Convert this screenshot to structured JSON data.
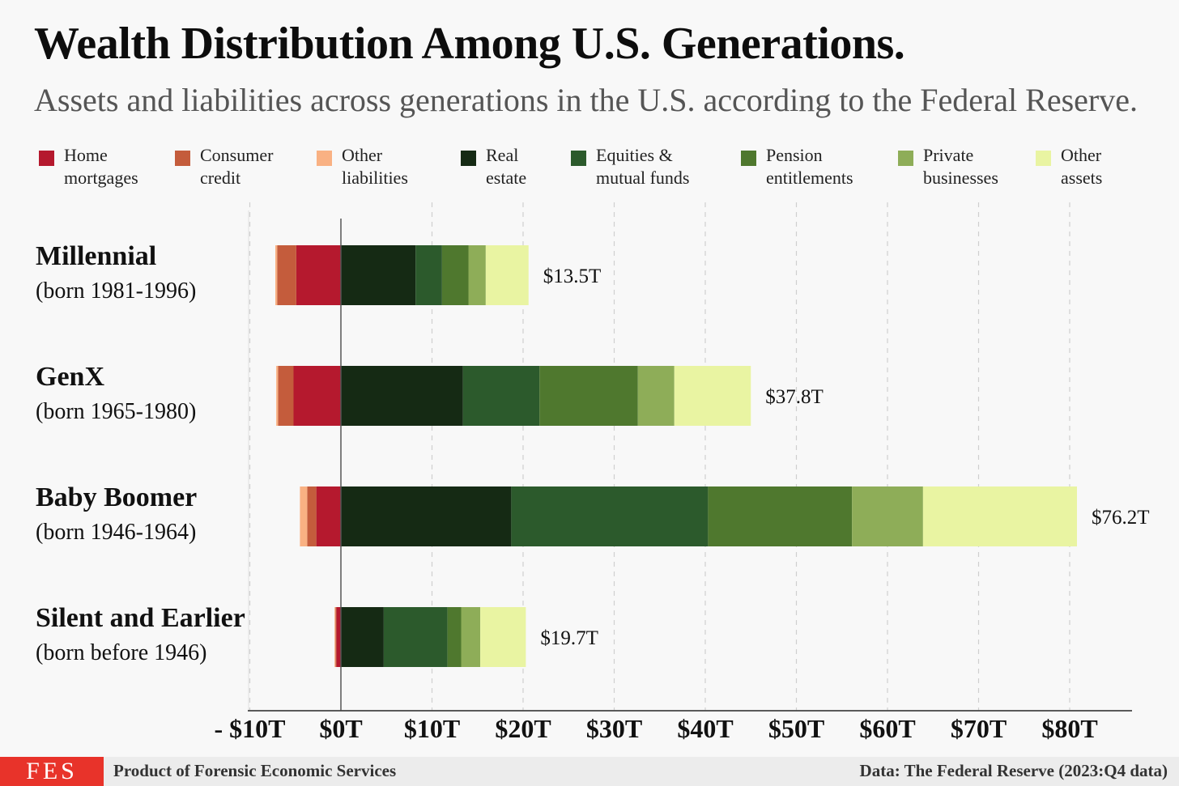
{
  "title": "Wealth Distribution Among U.S. Generations.",
  "subtitle": "Assets and liabilities across generations in the U.S. according to the Federal Reserve.",
  "colors": {
    "Home mortgages": "#b5192e",
    "Consumer credit": "#c45c3c",
    "Other liabilities": "#f9b183",
    "Real estate": "#152a14",
    "Equities & mutual funds": "#2c5a2c",
    "Pension entitlements": "#4f782e",
    "Private businesses": "#8ead58",
    "Other assets": "#e9f4a2"
  },
  "legend": [
    {
      "series": "Home mortgages",
      "line1": "Home",
      "line2": "mortgages"
    },
    {
      "series": "Consumer credit",
      "line1": "Consumer",
      "line2": "credit"
    },
    {
      "series": "Other liabilities",
      "line1": "Other",
      "line2": "liabilities"
    },
    {
      "series": "Real estate",
      "line1": "Real",
      "line2": "estate"
    },
    {
      "series": "Equities & mutual funds",
      "line1": "Equities &",
      "line2": "mutual funds"
    },
    {
      "series": "Pension entitlements",
      "line1": "Pension",
      "line2": "entitlements"
    },
    {
      "series": "Private businesses",
      "line1": "Private",
      "line2": "businesses"
    },
    {
      "series": "Other assets",
      "line1": "Other",
      "line2": "assets"
    }
  ],
  "chart_data": {
    "type": "bar",
    "orientation": "horizontal",
    "stacked": true,
    "unit": "trillions USD",
    "xlim": [
      -10,
      85
    ],
    "xticks": [
      -10,
      0,
      10,
      20,
      30,
      40,
      50,
      60,
      70,
      80
    ],
    "xtick_labels": [
      "- $10T",
      "$0T",
      "$10T",
      "$20T",
      "$30T",
      "$40T",
      "$50T",
      "$60T",
      "$70T",
      "$80T"
    ],
    "grid": "vertical dashed",
    "legend_position": "top",
    "categories": [
      {
        "name": "Millennial",
        "born": "(born 1981-1996)",
        "total_label": "$13.5T"
      },
      {
        "name": "GenX",
        "born": "(born 1965-1980)",
        "total_label": "$37.8T"
      },
      {
        "name": "Baby Boomer",
        "born": "(born 1946-1964)",
        "total_label": "$76.2T"
      },
      {
        "name": "Silent and Earlier",
        "born": "(born before 1946)",
        "total_label": "$19.7T"
      }
    ],
    "series": [
      {
        "name": "Home mortgages",
        "side": "liability",
        "values": [
          -4.9,
          -5.2,
          -2.7,
          -0.5
        ]
      },
      {
        "name": "Consumer credit",
        "side": "liability",
        "values": [
          -2.1,
          -1.7,
          -1.0,
          -0.1
        ]
      },
      {
        "name": "Other liabilities",
        "side": "liability",
        "values": [
          -0.2,
          -0.2,
          -0.8,
          -0.1
        ]
      },
      {
        "name": "Real estate",
        "side": "asset",
        "values": [
          8.2,
          13.4,
          18.7,
          4.7
        ]
      },
      {
        "name": "Equities & mutual funds",
        "side": "asset",
        "values": [
          2.9,
          8.4,
          21.6,
          7.0
        ]
      },
      {
        "name": "Pension entitlements",
        "side": "asset",
        "values": [
          2.9,
          10.8,
          15.8,
          1.5
        ]
      },
      {
        "name": "Private businesses",
        "side": "asset",
        "values": [
          1.9,
          4.0,
          7.8,
          2.1
        ]
      },
      {
        "name": "Other assets",
        "side": "asset",
        "values": [
          4.7,
          8.4,
          16.9,
          5.0
        ]
      }
    ]
  },
  "footer": {
    "logo_text": "FES",
    "left": "Product of  Forensic Economic Services",
    "right": "Data: The Federal Reserve (2023:Q4 data)"
  }
}
